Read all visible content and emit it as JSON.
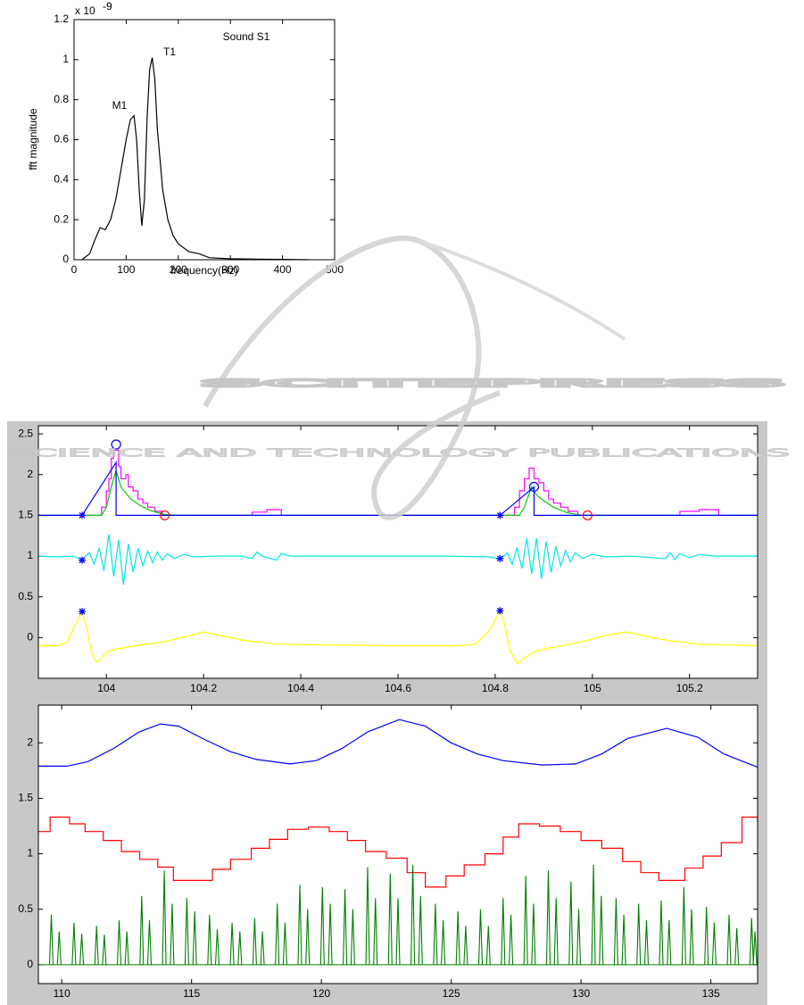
{
  "watermark": {
    "title": "SCITEPRESS",
    "subtitle": "SCIENCE AND TECHNOLOGY PUBLICATIONS"
  },
  "chart_data": [
    {
      "type": "line",
      "xlabel": "frequency(Hz)",
      "ylabel": "fft magnitude",
      "y_multiplier": "x 10",
      "y_multiplier_exponent": "-9",
      "annotations": [
        "Sound S1",
        "M1",
        "T1"
      ],
      "xlim": [
        0,
        500
      ],
      "ylim": [
        0,
        1.2
      ],
      "xticks": [
        0,
        100,
        200,
        300,
        400,
        500
      ],
      "yticks": [
        0,
        0.2,
        0.4,
        0.6,
        0.8,
        1,
        1.2
      ],
      "series": [
        {
          "color": "#000000",
          "style": "line",
          "x": [
            15,
            30,
            40,
            50,
            60,
            70,
            80,
            90,
            100,
            108,
            115,
            120,
            125,
            130,
            135,
            140,
            145,
            150,
            155,
            160,
            170,
            180,
            190,
            200,
            220,
            240,
            260,
            300,
            350,
            400,
            450
          ],
          "values": [
            0,
            0.03,
            0.1,
            0.16,
            0.15,
            0.2,
            0.3,
            0.45,
            0.6,
            0.7,
            0.72,
            0.6,
            0.35,
            0.17,
            0.3,
            0.7,
            0.95,
            1.01,
            0.9,
            0.65,
            0.35,
            0.2,
            0.12,
            0.08,
            0.04,
            0.03,
            0.01,
            0.005,
            0.003,
            0.002,
            0
          ]
        }
      ]
    },
    {
      "type": "line",
      "xlim": [
        103.86,
        105.34
      ],
      "ylim": [
        -0.5,
        2.6
      ],
      "xticks": [
        104,
        104.2,
        104.4,
        104.6,
        104.8,
        105,
        105.2
      ],
      "yticks": [
        0,
        0.5,
        1,
        1.5,
        2,
        2.5
      ],
      "series": [
        {
          "color": "#ff00ff",
          "style": "steps",
          "x": [
            103.86,
            103.99,
            104.0,
            104.005,
            104.01,
            104.015,
            104.025,
            104.03,
            104.04,
            104.045,
            104.055,
            104.065,
            104.075,
            104.085,
            104.1,
            104.115,
            104.3,
            104.33,
            104.36,
            104.84,
            104.85,
            104.86,
            104.87,
            104.88,
            104.89,
            104.9,
            104.91,
            104.92,
            104.935,
            104.95,
            104.97,
            105.18,
            105.22,
            105.26,
            105.34
          ],
          "values": [
            1.5,
            1.6,
            1.8,
            1.95,
            2.2,
            2.3,
            2.1,
            1.95,
            2.0,
            1.85,
            1.8,
            1.7,
            1.65,
            1.6,
            1.55,
            1.5,
            1.54,
            1.57,
            1.5,
            1.6,
            1.8,
            1.95,
            2.08,
            1.95,
            1.9,
            1.8,
            1.7,
            1.65,
            1.6,
            1.55,
            1.5,
            1.55,
            1.57,
            1.5,
            1.5
          ]
        },
        {
          "color": "#00cc00",
          "style": "line",
          "x": [
            103.86,
            103.99,
            104.0,
            104.01,
            104.02,
            104.03,
            104.05,
            104.07,
            104.09,
            104.12,
            104.15,
            104.85,
            104.86,
            104.875,
            104.885,
            104.9,
            104.92,
            104.95,
            104.98,
            105.34
          ],
          "values": [
            1.5,
            1.5,
            1.6,
            1.85,
            2.05,
            1.85,
            1.7,
            1.62,
            1.56,
            1.51,
            1.5,
            1.5,
            1.6,
            1.85,
            1.75,
            1.68,
            1.6,
            1.53,
            1.5,
            1.5
          ]
        },
        {
          "color": "#0000ff",
          "style": "line",
          "x": [
            103.86,
            103.95,
            104.02,
            104.02,
            104.81,
            104.88,
            104.88,
            105.34
          ],
          "values": [
            1.5,
            1.5,
            2.15,
            1.5,
            1.5,
            1.85,
            1.5,
            1.5
          ]
        },
        {
          "color": "#00e5e5",
          "style": "line",
          "x": [
            103.86,
            103.9,
            103.93,
            103.95,
            103.965,
            103.975,
            103.985,
            103.995,
            104.005,
            104.015,
            104.025,
            104.035,
            104.045,
            104.055,
            104.065,
            104.075,
            104.085,
            104.095,
            104.105,
            104.115,
            104.125,
            104.14,
            104.16,
            104.18,
            104.22,
            104.28,
            104.3,
            104.31,
            104.32,
            104.35,
            104.36,
            104.38,
            104.5,
            104.7,
            104.79,
            104.81,
            104.825,
            104.835,
            104.845,
            104.855,
            104.865,
            104.875,
            104.885,
            104.895,
            104.905,
            104.915,
            104.925,
            104.935,
            104.945,
            104.955,
            104.965,
            104.98,
            105.0,
            105.03,
            105.08,
            105.15,
            105.16,
            105.17,
            105.18,
            105.2,
            105.22,
            105.25,
            105.34
          ],
          "values": [
            1.0,
            0.99,
            1.0,
            0.96,
            1.04,
            0.9,
            1.1,
            0.82,
            1.27,
            0.75,
            1.2,
            0.65,
            1.15,
            0.8,
            1.1,
            0.88,
            1.06,
            0.92,
            1.05,
            0.95,
            1.03,
            0.97,
            1.02,
            0.99,
            1.0,
            1.0,
            0.97,
            1.05,
            1.0,
            0.95,
            1.03,
            1.0,
            1.0,
            1.0,
            0.99,
            0.96,
            1.04,
            0.9,
            1.1,
            0.85,
            1.22,
            0.78,
            1.22,
            0.72,
            1.18,
            0.8,
            1.12,
            0.88,
            1.07,
            0.93,
            1.04,
            0.97,
            1.02,
            0.99,
            1.0,
            0.97,
            1.04,
            0.96,
            1.03,
            0.98,
            1.02,
            1.0,
            1.0
          ]
        },
        {
          "color": "#ffff00",
          "style": "line",
          "x": [
            103.86,
            103.9,
            103.92,
            103.935,
            103.95,
            103.96,
            103.97,
            103.98,
            103.99,
            104.0,
            104.02,
            104.06,
            104.12,
            104.17,
            104.2,
            104.23,
            104.28,
            104.35,
            104.45,
            104.6,
            104.72,
            104.76,
            104.79,
            104.81,
            104.82,
            104.83,
            104.845,
            104.86,
            104.88,
            104.92,
            104.98,
            105.03,
            105.07,
            105.1,
            105.15,
            105.22,
            105.34
          ],
          "values": [
            -0.1,
            -0.1,
            -0.05,
            0.15,
            0.32,
            0.1,
            -0.2,
            -0.3,
            -0.25,
            -0.18,
            -0.14,
            -0.1,
            -0.05,
            0.02,
            0.07,
            0.03,
            -0.03,
            -0.08,
            -0.09,
            -0.1,
            -0.1,
            -0.08,
            0.1,
            0.33,
            0.15,
            -0.15,
            -0.32,
            -0.25,
            -0.17,
            -0.12,
            -0.05,
            0.03,
            0.07,
            0.03,
            -0.03,
            -0.08,
            -0.1
          ]
        },
        {
          "color": "#0000ff",
          "style": "star",
          "x": [
            103.95,
            103.95,
            103.95,
            104.81,
            104.81,
            104.81
          ],
          "values": [
            1.5,
            0.95,
            0.32,
            1.5,
            0.97,
            0.33
          ]
        },
        {
          "color": "#0000ff",
          "style": "circle",
          "x": [
            104.02,
            104.88
          ],
          "values": [
            2.37,
            1.85
          ]
        },
        {
          "color": "#ff0000",
          "style": "circle",
          "x": [
            104.12,
            104.99
          ],
          "values": [
            1.5,
            1.5
          ]
        }
      ]
    },
    {
      "type": "line",
      "xlim": [
        109.1,
        136.8
      ],
      "ylim": [
        -0.17,
        2.34
      ],
      "xticks": [
        110,
        115,
        120,
        125,
        130,
        135
      ],
      "yticks": [
        0,
        0.5,
        1,
        1.5,
        2
      ],
      "series": [
        {
          "color": "#0000ff",
          "style": "line",
          "x": [
            109.1,
            110.2,
            111,
            112,
            113,
            113.8,
            114.5,
            115.5,
            116.5,
            117.5,
            118.8,
            119.8,
            120.8,
            121.8,
            123,
            124,
            125,
            126,
            127,
            128.5,
            129.8,
            130.8,
            131.8,
            133.3,
            134.5,
            135.5,
            136.8
          ],
          "values": [
            1.79,
            1.79,
            1.83,
            1.95,
            2.1,
            2.17,
            2.15,
            2.03,
            1.92,
            1.85,
            1.81,
            1.84,
            1.95,
            2.1,
            2.21,
            2.15,
            2.0,
            1.9,
            1.84,
            1.8,
            1.81,
            1.9,
            2.04,
            2.13,
            2.05,
            1.9,
            1.78
          ]
        },
        {
          "color": "#ff0000",
          "style": "steps",
          "x": [
            109.1,
            109.55,
            110.3,
            110.9,
            111.6,
            112.3,
            113.0,
            113.7,
            114.3,
            115.8,
            116.5,
            117.3,
            118.0,
            118.7,
            119.5,
            120.3,
            121.0,
            121.7,
            122.5,
            123.3,
            124.0,
            124.8,
            125.5,
            126.3,
            127.0,
            127.6,
            128.4,
            129.2,
            130.0,
            130.8,
            131.6,
            132.3,
            133.0,
            134.0,
            134.7,
            135.4,
            136.2,
            136.8
          ],
          "values": [
            1.2,
            1.33,
            1.27,
            1.2,
            1.12,
            1.02,
            0.95,
            0.88,
            0.76,
            0.86,
            0.95,
            1.05,
            1.13,
            1.22,
            1.24,
            1.2,
            1.12,
            1.02,
            0.96,
            0.83,
            0.7,
            0.8,
            0.9,
            1.0,
            1.15,
            1.27,
            1.25,
            1.2,
            1.12,
            1.05,
            0.93,
            0.83,
            0.76,
            0.87,
            0.98,
            1.1,
            1.33,
            1.29
          ]
        },
        {
          "color": "#007f00",
          "style": "spikes",
          "x": [
            109.6,
            110.47,
            111.34,
            112.21,
            113.08,
            113.95,
            114.82,
            115.69,
            116.56,
            117.43,
            118.3,
            119.17,
            120.04,
            120.91,
            121.78,
            122.65,
            123.52,
            124.39,
            125.26,
            126.13,
            127.0,
            127.87,
            128.74,
            129.61,
            130.48,
            131.35,
            132.22,
            133.09,
            133.96,
            134.83,
            135.7,
            136.57
          ],
          "values": [
            0.45,
            0.38,
            0.35,
            0.4,
            0.62,
            0.85,
            0.6,
            0.45,
            0.38,
            0.42,
            0.55,
            0.72,
            0.7,
            0.68,
            0.88,
            0.82,
            0.9,
            0.55,
            0.48,
            0.5,
            0.6,
            0.8,
            0.85,
            0.75,
            0.9,
            0.6,
            0.55,
            0.58,
            0.7,
            0.52,
            0.45,
            0.42
          ]
        },
        {
          "color": "#007f00",
          "style": "spikes",
          "x": [
            109.9,
            110.77,
            111.64,
            112.51,
            113.38,
            114.25,
            115.12,
            115.99,
            116.86,
            117.73,
            118.6,
            119.47,
            120.34,
            121.21,
            122.08,
            122.95,
            123.82,
            124.69,
            125.56,
            126.43,
            127.3,
            128.17,
            129.04,
            129.91,
            130.78,
            131.65,
            132.52,
            133.39,
            134.26,
            135.13,
            136.0,
            136.7
          ],
          "values": [
            0.3,
            0.28,
            0.27,
            0.3,
            0.4,
            0.55,
            0.48,
            0.32,
            0.3,
            0.3,
            0.38,
            0.5,
            0.55,
            0.5,
            0.6,
            0.6,
            0.62,
            0.4,
            0.35,
            0.35,
            0.45,
            0.55,
            0.6,
            0.5,
            0.62,
            0.45,
            0.4,
            0.4,
            0.5,
            0.38,
            0.33,
            0.3
          ]
        }
      ]
    }
  ]
}
